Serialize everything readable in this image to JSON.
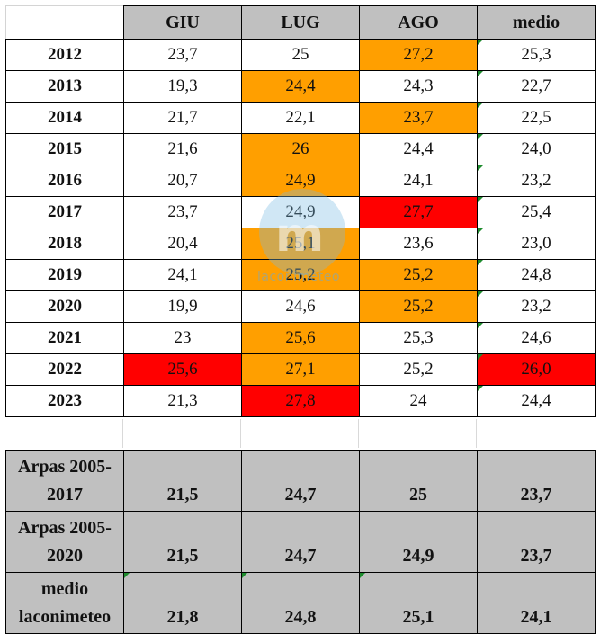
{
  "header": {
    "corner": "",
    "cols": [
      "GIU",
      "LUG",
      "AGO",
      "medio"
    ]
  },
  "rows": [
    {
      "year": "2012",
      "cells": [
        {
          "v": "23,7",
          "c": ""
        },
        {
          "v": "25",
          "c": ""
        },
        {
          "v": "27,2",
          "c": "orange"
        },
        {
          "v": "25,3",
          "c": "",
          "f": true
        }
      ]
    },
    {
      "year": "2013",
      "cells": [
        {
          "v": "19,3",
          "c": ""
        },
        {
          "v": "24,4",
          "c": "orange"
        },
        {
          "v": "24,3",
          "c": ""
        },
        {
          "v": "22,7",
          "c": "",
          "f": true
        }
      ]
    },
    {
      "year": "2014",
      "cells": [
        {
          "v": "21,7",
          "c": ""
        },
        {
          "v": "22,1",
          "c": ""
        },
        {
          "v": "23,7",
          "c": "orange"
        },
        {
          "v": "22,5",
          "c": "",
          "f": true
        }
      ]
    },
    {
      "year": "2015",
      "cells": [
        {
          "v": "21,6",
          "c": ""
        },
        {
          "v": "26",
          "c": "orange"
        },
        {
          "v": "24,4",
          "c": ""
        },
        {
          "v": "24,0",
          "c": "",
          "f": true
        }
      ]
    },
    {
      "year": "2016",
      "cells": [
        {
          "v": "20,7",
          "c": ""
        },
        {
          "v": "24,9",
          "c": "orange"
        },
        {
          "v": "24,1",
          "c": ""
        },
        {
          "v": "23,2",
          "c": "",
          "f": true
        }
      ]
    },
    {
      "year": "2017",
      "cells": [
        {
          "v": "23,7",
          "c": ""
        },
        {
          "v": "24,9",
          "c": ""
        },
        {
          "v": "27,7",
          "c": "red"
        },
        {
          "v": "25,4",
          "c": "",
          "f": true
        }
      ]
    },
    {
      "year": "2018",
      "cells": [
        {
          "v": "20,4",
          "c": ""
        },
        {
          "v": "25,1",
          "c": "orange"
        },
        {
          "v": "23,6",
          "c": ""
        },
        {
          "v": "23,0",
          "c": "",
          "f": true
        }
      ]
    },
    {
      "year": "2019",
      "cells": [
        {
          "v": "24,1",
          "c": ""
        },
        {
          "v": "25,2",
          "c": "orange"
        },
        {
          "v": "25,2",
          "c": "orange"
        },
        {
          "v": "24,8",
          "c": "",
          "f": true
        }
      ]
    },
    {
      "year": "2020",
      "cells": [
        {
          "v": "19,9",
          "c": ""
        },
        {
          "v": "24,6",
          "c": ""
        },
        {
          "v": "25,2",
          "c": "orange"
        },
        {
          "v": "23,2",
          "c": "",
          "f": true
        }
      ]
    },
    {
      "year": "2021",
      "cells": [
        {
          "v": "23",
          "c": ""
        },
        {
          "v": "25,6",
          "c": "orange"
        },
        {
          "v": "25,3",
          "c": ""
        },
        {
          "v": "24,6",
          "c": "",
          "f": true
        }
      ]
    },
    {
      "year": "2022",
      "cells": [
        {
          "v": "25,6",
          "c": "red"
        },
        {
          "v": "27,1",
          "c": "orange"
        },
        {
          "v": "25,2",
          "c": ""
        },
        {
          "v": "26,0",
          "c": "red",
          "f": true
        }
      ]
    },
    {
      "year": "2023",
      "cells": [
        {
          "v": "21,3",
          "c": ""
        },
        {
          "v": "27,8",
          "c": "red"
        },
        {
          "v": "24",
          "c": ""
        },
        {
          "v": "24,4",
          "c": "",
          "f": true
        }
      ]
    }
  ],
  "summary": [
    {
      "label": [
        "Arpas 2005-",
        "2017"
      ],
      "values": [
        "21,5",
        "24,7",
        "25",
        "23,7"
      ]
    },
    {
      "label": [
        "Arpas 2005-",
        "2020"
      ],
      "values": [
        "21,5",
        "24,7",
        "24,9",
        "23,7"
      ]
    },
    {
      "label": [
        "medio",
        "laconimeteo"
      ],
      "values": [
        "21,8",
        "24,8",
        "25,1",
        "24,1"
      ],
      "flags": [
        true,
        true,
        true,
        false
      ]
    }
  ],
  "watermark": {
    "text": "laconimeteo",
    "letter": "m"
  },
  "colors": {
    "orange": "#ff9f00",
    "red": "#ff0000",
    "header_gray": "#c0c0c0",
    "flag_green": "#1e8c2e"
  }
}
